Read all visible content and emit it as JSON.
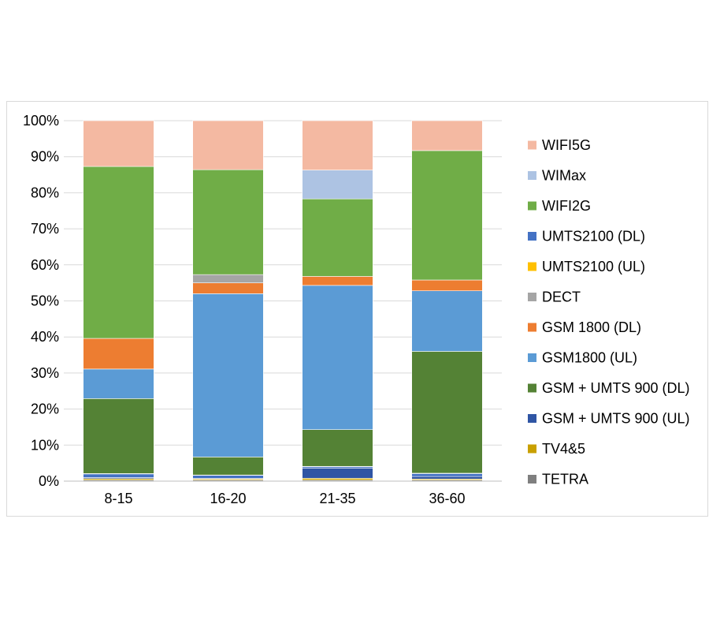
{
  "chart_data": {
    "type": "bar",
    "stacked": true,
    "categories": [
      "8-15",
      "16-20",
      "21-35",
      "36-60"
    ],
    "ylim": [
      0,
      100
    ],
    "yticks": [
      "0%",
      "10%",
      "20%",
      "30%",
      "40%",
      "50%",
      "60%",
      "70%",
      "80%",
      "90%",
      "100%"
    ],
    "grid": true,
    "legend_position": "right",
    "series": [
      {
        "name": "TETRA",
        "color": "#7f7f7f",
        "values": [
          0.3,
          0.3,
          0.3,
          0.3
        ]
      },
      {
        "name": "TV4&5",
        "color": "#c9a000",
        "values": [
          0.4,
          0.3,
          0.5,
          0.3
        ]
      },
      {
        "name": "GSM + UMTS 900 (UL)",
        "color": "#2f55a4",
        "values": [
          0.3,
          0.2,
          2.8,
          0.7
        ]
      },
      {
        "name": "UMTS2100 (DL)",
        "color": "#4472c4",
        "values": [
          1.0,
          0.8,
          0.4,
          0.8
        ]
      },
      {
        "name": "UMTS2100 (UL)",
        "color": "#ffc000",
        "values": [
          0.1,
          0.1,
          0.1,
          0.1
        ]
      },
      {
        "name": "GSM + UMTS 900 (DL)",
        "color": "#548235",
        "values": [
          20.8,
          5.0,
          10.2,
          33.8
        ]
      },
      {
        "name": "GSM1800 (UL)",
        "color": "#5b9bd5",
        "values": [
          8.2,
          45.3,
          40.0,
          16.8
        ]
      },
      {
        "name": "GSM 1800 (DL)",
        "color": "#ed7d31",
        "values": [
          8.5,
          3.0,
          2.5,
          3.0
        ]
      },
      {
        "name": "DECT",
        "color": "#a5a5a5",
        "values": [
          0.0,
          2.3,
          0.0,
          0.0
        ]
      },
      {
        "name": "WIFI2G",
        "color": "#70ad47",
        "values": [
          47.7,
          29.1,
          21.5,
          35.9
        ]
      },
      {
        "name": "WIMax",
        "color": "#adc3e3",
        "values": [
          0.0,
          0.0,
          8.0,
          0.0
        ]
      },
      {
        "name": "WIFI5G",
        "color": "#f4b9a2",
        "values": [
          12.7,
          13.6,
          13.7,
          8.3
        ]
      }
    ],
    "legend_order": [
      "WIFI5G",
      "WIMax",
      "WIFI2G",
      "UMTS2100 (DL)",
      "UMTS2100 (UL)",
      "DECT",
      "GSM 1800 (DL)",
      "GSM1800 (UL)",
      "GSM + UMTS 900 (DL)",
      "GSM + UMTS 900 (UL)",
      "TV4&5",
      "TETRA"
    ]
  }
}
